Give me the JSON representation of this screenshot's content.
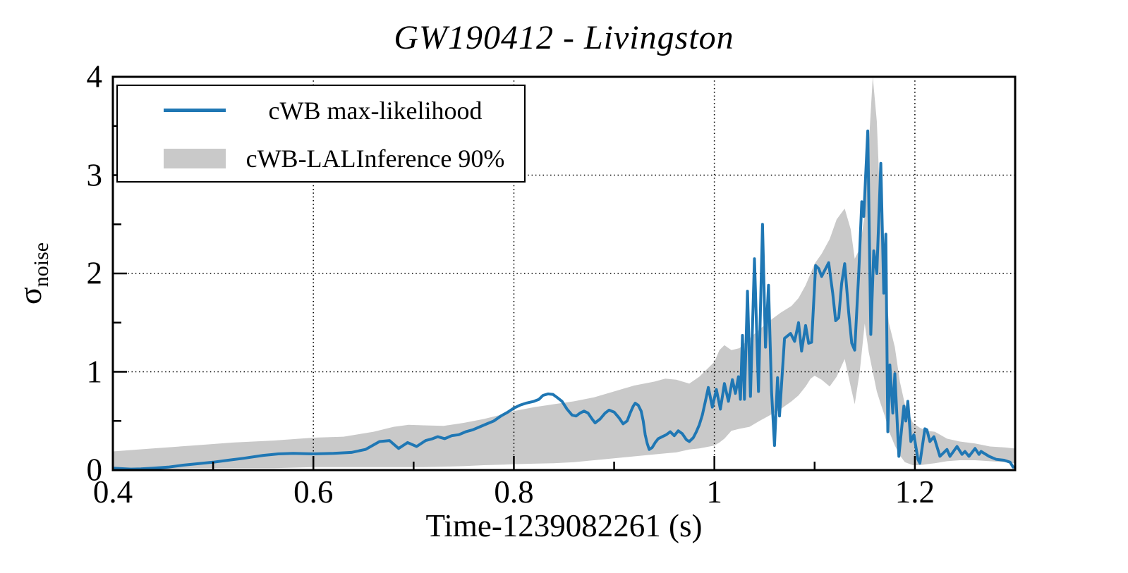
{
  "title": "GW190412 - Livingston",
  "axes": {
    "xlabel": "Time-1239082261 (s)",
    "ylabel_main": "σ",
    "ylabel_sub": "noise",
    "xticks": [
      {
        "v": 0.4,
        "label": "0.4"
      },
      {
        "v": 0.6,
        "label": "0.6"
      },
      {
        "v": 0.8,
        "label": "0.8"
      },
      {
        "v": 1.0,
        "label": "1"
      },
      {
        "v": 1.2,
        "label": "1.2"
      }
    ],
    "yticks": [
      {
        "v": 0,
        "label": "0"
      },
      {
        "v": 1,
        "label": "1"
      },
      {
        "v": 2,
        "label": "2"
      },
      {
        "v": 3,
        "label": "3"
      },
      {
        "v": 4,
        "label": "4"
      }
    ],
    "x_minor_ticks": [
      0.5,
      0.7,
      0.9,
      1.1
    ],
    "y_minor_ticks": [
      0.5,
      1.5,
      2.5,
      3.5
    ],
    "grid_x": [
      0.6,
      0.8,
      1.0,
      1.2
    ],
    "grid_y": [
      1,
      2,
      3
    ]
  },
  "legend": {
    "entries": [
      {
        "label": "cWB max-likelihood",
        "swatch": "line",
        "color": "#1f77b4"
      },
      {
        "label": "cWB-LALInference 90%",
        "swatch": "patch",
        "color": "#c9c9c9"
      }
    ]
  },
  "colors": {
    "line": "#1f77b4",
    "band": "#c9c9c9",
    "grid": "#000000",
    "axis": "#000000",
    "background": "#ffffff"
  },
  "chart_data": {
    "type": "line",
    "title": "GW190412 - Livingston",
    "xlabel": "Time-1239082261 (s)",
    "ylabel": "sigma_noise",
    "xlim": [
      0.4,
      1.3
    ],
    "ylim": [
      0,
      4
    ],
    "grid": "dotted on major ticks",
    "legend_position": "upper left",
    "series": [
      {
        "name": "cWB max-likelihood",
        "type": "line",
        "color": "#1f77b4",
        "points": [
          [
            0.4,
            0.02
          ],
          [
            0.408,
            0.015
          ],
          [
            0.418,
            0.01
          ],
          [
            0.428,
            0.012
          ],
          [
            0.44,
            0.02
          ],
          [
            0.455,
            0.03
          ],
          [
            0.47,
            0.05
          ],
          [
            0.485,
            0.065
          ],
          [
            0.5,
            0.08
          ],
          [
            0.515,
            0.1
          ],
          [
            0.53,
            0.12
          ],
          [
            0.55,
            0.15
          ],
          [
            0.565,
            0.165
          ],
          [
            0.58,
            0.17
          ],
          [
            0.6,
            0.165
          ],
          [
            0.62,
            0.17
          ],
          [
            0.638,
            0.18
          ],
          [
            0.652,
            0.21
          ],
          [
            0.666,
            0.29
          ],
          [
            0.676,
            0.3
          ],
          [
            0.685,
            0.22
          ],
          [
            0.694,
            0.28
          ],
          [
            0.703,
            0.24
          ],
          [
            0.712,
            0.3
          ],
          [
            0.719,
            0.32
          ],
          [
            0.724,
            0.34
          ],
          [
            0.731,
            0.32
          ],
          [
            0.738,
            0.35
          ],
          [
            0.745,
            0.36
          ],
          [
            0.752,
            0.39
          ],
          [
            0.759,
            0.41
          ],
          [
            0.766,
            0.44
          ],
          [
            0.773,
            0.47
          ],
          [
            0.78,
            0.5
          ],
          [
            0.787,
            0.55
          ],
          [
            0.794,
            0.59
          ],
          [
            0.8,
            0.63
          ],
          [
            0.806,
            0.66
          ],
          [
            0.812,
            0.68
          ],
          [
            0.82,
            0.7
          ],
          [
            0.825,
            0.72
          ],
          [
            0.829,
            0.76
          ],
          [
            0.834,
            0.775
          ],
          [
            0.839,
            0.77
          ],
          [
            0.843,
            0.74
          ],
          [
            0.848,
            0.7
          ],
          [
            0.853,
            0.62
          ],
          [
            0.858,
            0.56
          ],
          [
            0.862,
            0.55
          ],
          [
            0.866,
            0.58
          ],
          [
            0.87,
            0.6
          ],
          [
            0.874,
            0.58
          ],
          [
            0.878,
            0.52
          ],
          [
            0.881,
            0.48
          ],
          [
            0.886,
            0.52
          ],
          [
            0.891,
            0.58
          ],
          [
            0.895,
            0.61
          ],
          [
            0.9,
            0.59
          ],
          [
            0.905,
            0.53
          ],
          [
            0.909,
            0.47
          ],
          [
            0.913,
            0.5
          ],
          [
            0.916,
            0.58
          ],
          [
            0.919,
            0.65
          ],
          [
            0.921,
            0.68
          ],
          [
            0.924,
            0.66
          ],
          [
            0.927,
            0.6
          ],
          [
            0.929,
            0.5
          ],
          [
            0.931,
            0.36
          ],
          [
            0.933,
            0.27
          ],
          [
            0.935,
            0.21
          ],
          [
            0.938,
            0.23
          ],
          [
            0.941,
            0.28
          ],
          [
            0.944,
            0.32
          ],
          [
            0.948,
            0.34
          ],
          [
            0.952,
            0.36
          ],
          [
            0.956,
            0.39
          ],
          [
            0.96,
            0.35
          ],
          [
            0.964,
            0.4
          ],
          [
            0.968,
            0.37
          ],
          [
            0.972,
            0.31
          ],
          [
            0.975,
            0.29
          ],
          [
            0.979,
            0.33
          ],
          [
            0.982,
            0.39
          ],
          [
            0.985,
            0.46
          ],
          [
            0.988,
            0.56
          ],
          [
            0.991,
            0.7
          ],
          [
            0.994,
            0.84
          ],
          [
            0.998,
            0.64
          ],
          [
            1.002,
            0.82
          ],
          [
            1.006,
            0.62
          ],
          [
            1.01,
            0.88
          ],
          [
            1.014,
            0.7
          ],
          [
            1.018,
            0.92
          ],
          [
            1.021,
            0.78
          ],
          [
            1.024,
            0.95
          ],
          [
            1.026,
            0.72
          ],
          [
            1.028,
            1.37
          ],
          [
            1.03,
            0.72
          ],
          [
            1.033,
            1.82
          ],
          [
            1.036,
            0.75
          ],
          [
            1.04,
            2.15
          ],
          [
            1.044,
            0.8
          ],
          [
            1.048,
            2.5
          ],
          [
            1.051,
            1.25
          ],
          [
            1.054,
            1.88
          ],
          [
            1.057,
            0.8
          ],
          [
            1.06,
            0.25
          ],
          [
            1.063,
            0.94
          ],
          [
            1.065,
            0.55
          ],
          [
            1.07,
            1.34
          ],
          [
            1.076,
            1.39
          ],
          [
            1.08,
            1.31
          ],
          [
            1.084,
            1.5
          ],
          [
            1.087,
            1.21
          ],
          [
            1.091,
            1.47
          ],
          [
            1.094,
            1.29
          ],
          [
            1.097,
            1.3
          ],
          [
            1.099,
            1.7
          ],
          [
            1.101,
            2.08
          ],
          [
            1.104,
            2.05
          ],
          [
            1.107,
            1.97
          ],
          [
            1.111,
            2.05
          ],
          [
            1.114,
            2.11
          ],
          [
            1.118,
            1.8
          ],
          [
            1.121,
            1.52
          ],
          [
            1.124,
            1.55
          ],
          [
            1.127,
            1.9
          ],
          [
            1.13,
            2.1
          ],
          [
            1.134,
            1.6
          ],
          [
            1.137,
            1.29
          ],
          [
            1.14,
            1.22
          ],
          [
            1.144,
            2.0
          ],
          [
            1.147,
            2.73
          ],
          [
            1.149,
            2.58
          ],
          [
            1.153,
            3.45
          ],
          [
            1.156,
            1.38
          ],
          [
            1.159,
            2.23
          ],
          [
            1.162,
            2.0
          ],
          [
            1.166,
            3.12
          ],
          [
            1.169,
            1.8
          ],
          [
            1.171,
            2.4
          ],
          [
            1.173,
            0.39
          ],
          [
            1.175,
            1.07
          ],
          [
            1.178,
            0.58
          ],
          [
            1.18,
            0.98
          ],
          [
            1.184,
            0.14
          ],
          [
            1.189,
            0.65
          ],
          [
            1.191,
            0.5
          ],
          [
            1.193,
            0.7
          ],
          [
            1.196,
            0.29
          ],
          [
            1.199,
            0.36
          ],
          [
            1.203,
            0.11
          ],
          [
            1.205,
            0.07
          ],
          [
            1.21,
            0.42
          ],
          [
            1.212,
            0.41
          ],
          [
            1.215,
            0.29
          ],
          [
            1.219,
            0.34
          ],
          [
            1.225,
            0.14
          ],
          [
            1.232,
            0.21
          ],
          [
            1.235,
            0.14
          ],
          [
            1.242,
            0.24
          ],
          [
            1.247,
            0.16
          ],
          [
            1.25,
            0.19
          ],
          [
            1.254,
            0.14
          ],
          [
            1.26,
            0.22
          ],
          [
            1.264,
            0.16
          ],
          [
            1.266,
            0.19
          ],
          [
            1.274,
            0.14
          ],
          [
            1.281,
            0.11
          ],
          [
            1.289,
            0.1
          ],
          [
            1.295,
            0.08
          ],
          [
            1.298,
            0.03
          ]
        ]
      },
      {
        "name": "cWB-LALInference 90%",
        "type": "band",
        "color": "#c9c9c9",
        "points": [
          [
            0.4,
            0.02,
            0.19
          ],
          [
            0.44,
            0.01,
            0.22
          ],
          [
            0.48,
            0.02,
            0.25
          ],
          [
            0.52,
            0.02,
            0.28
          ],
          [
            0.56,
            0.02,
            0.3
          ],
          [
            0.6,
            0.03,
            0.33
          ],
          [
            0.63,
            0.03,
            0.34
          ],
          [
            0.66,
            0.03,
            0.39
          ],
          [
            0.68,
            0.03,
            0.44
          ],
          [
            0.695,
            0.03,
            0.46
          ],
          [
            0.71,
            0.03,
            0.455
          ],
          [
            0.73,
            0.035,
            0.45
          ],
          [
            0.75,
            0.04,
            0.48
          ],
          [
            0.77,
            0.05,
            0.52
          ],
          [
            0.79,
            0.055,
            0.57
          ],
          [
            0.8,
            0.06,
            0.6
          ],
          [
            0.82,
            0.065,
            0.64
          ],
          [
            0.84,
            0.07,
            0.67
          ],
          [
            0.86,
            0.08,
            0.7
          ],
          [
            0.88,
            0.1,
            0.74
          ],
          [
            0.9,
            0.12,
            0.8
          ],
          [
            0.92,
            0.14,
            0.86
          ],
          [
            0.94,
            0.16,
            0.9
          ],
          [
            0.951,
            0.17,
            0.93
          ],
          [
            0.962,
            0.18,
            0.92
          ],
          [
            0.975,
            0.21,
            0.88
          ],
          [
            0.985,
            0.22,
            0.95
          ],
          [
            1.0,
            0.25,
            1.1
          ],
          [
            1.005,
            0.28,
            1.22
          ],
          [
            1.01,
            0.32,
            1.27
          ],
          [
            1.017,
            0.4,
            1.22
          ],
          [
            1.025,
            0.42,
            1.24
          ],
          [
            1.035,
            0.44,
            1.34
          ],
          [
            1.045,
            0.5,
            1.43
          ],
          [
            1.054,
            0.55,
            1.51
          ],
          [
            1.066,
            0.62,
            1.6
          ],
          [
            1.077,
            0.7,
            1.67
          ],
          [
            1.084,
            0.76,
            1.75
          ],
          [
            1.091,
            0.85,
            1.88
          ],
          [
            1.096,
            0.93,
            2.0
          ],
          [
            1.1,
            0.96,
            2.1
          ],
          [
            1.107,
            0.92,
            2.2
          ],
          [
            1.115,
            0.85,
            2.35
          ],
          [
            1.122,
            0.95,
            2.55
          ],
          [
            1.13,
            1.13,
            2.66
          ],
          [
            1.136,
            0.85,
            2.45
          ],
          [
            1.14,
            0.67,
            2.15
          ],
          [
            1.145,
            1.0,
            2.25
          ],
          [
            1.15,
            1.49,
            2.6
          ],
          [
            1.154,
            1.2,
            3.3
          ],
          [
            1.158,
            1.0,
            4.0
          ],
          [
            1.162,
            0.8,
            3.55
          ],
          [
            1.166,
            0.67,
            2.55
          ],
          [
            1.17,
            0.55,
            1.95
          ],
          [
            1.174,
            0.4,
            1.5
          ],
          [
            1.18,
            0.25,
            1.25
          ],
          [
            1.185,
            0.15,
            0.9
          ],
          [
            1.19,
            0.08,
            0.67
          ],
          [
            1.198,
            0.05,
            0.48
          ],
          [
            1.205,
            0.05,
            0.43
          ],
          [
            1.212,
            0.06,
            0.4
          ],
          [
            1.22,
            0.07,
            0.39
          ],
          [
            1.232,
            0.09,
            0.32
          ],
          [
            1.245,
            0.1,
            0.29
          ],
          [
            1.26,
            0.1,
            0.27
          ],
          [
            1.275,
            0.09,
            0.24
          ],
          [
            1.29,
            0.08,
            0.23
          ],
          [
            1.299,
            0.07,
            0.22
          ]
        ]
      }
    ]
  }
}
